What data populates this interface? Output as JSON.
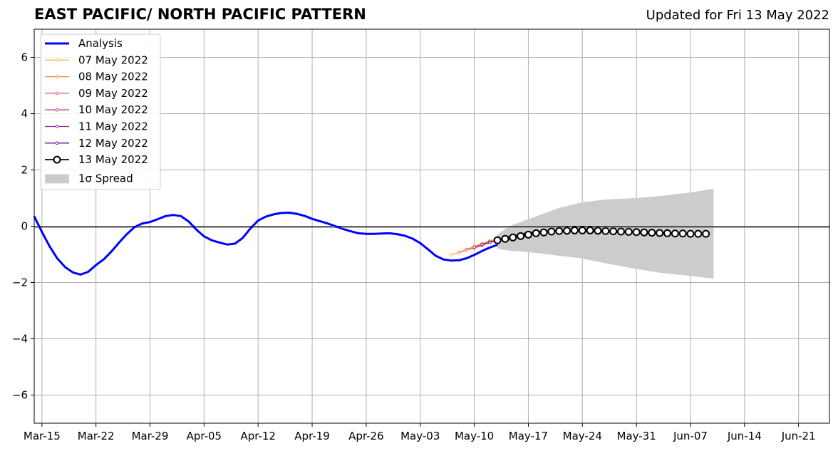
{
  "header": {
    "title": "EAST PACIFIC/ NORTH PACIFIC PATTERN",
    "updated": "Updated for Fri 13 May 2022"
  },
  "chart_data": {
    "type": "line",
    "title": "EAST PACIFIC/ NORTH PACIFIC PATTERN",
    "subtitle": "Updated for Fri 13 May 2022",
    "xlabel": "",
    "ylabel": "",
    "x_unit": "date",
    "xlim": [
      "2022-03-14",
      "2022-06-25"
    ],
    "ylim": [
      -7,
      7
    ],
    "yticks": [
      -6,
      -4,
      -2,
      0,
      2,
      4,
      6
    ],
    "ytick_labels": [
      "−6",
      "−4",
      "−2",
      "0",
      "2",
      "4",
      "6"
    ],
    "xticks": [
      "2022-03-15",
      "2022-03-22",
      "2022-03-29",
      "2022-04-05",
      "2022-04-12",
      "2022-04-19",
      "2022-04-26",
      "2022-05-03",
      "2022-05-10",
      "2022-05-17",
      "2022-05-24",
      "2022-05-31",
      "2022-06-07",
      "2022-06-14",
      "2022-06-21"
    ],
    "xtick_labels": [
      "Mar-15",
      "Mar-22",
      "Mar-29",
      "Apr-05",
      "Apr-12",
      "Apr-19",
      "Apr-26",
      "May-03",
      "May-10",
      "May-17",
      "May-24",
      "May-31",
      "Jun-07",
      "Jun-14",
      "Jun-21"
    ],
    "grid": true,
    "legend_position": "top-left",
    "zero_line": true,
    "analysis": {
      "name": "Analysis",
      "color": "#0000ff",
      "x": [
        "2022-03-14",
        "2022-03-15",
        "2022-03-16",
        "2022-03-17",
        "2022-03-18",
        "2022-03-19",
        "2022-03-20",
        "2022-03-21",
        "2022-03-22",
        "2022-03-23",
        "2022-03-24",
        "2022-03-25",
        "2022-03-26",
        "2022-03-27",
        "2022-03-28",
        "2022-03-29",
        "2022-03-30",
        "2022-03-31",
        "2022-04-01",
        "2022-04-02",
        "2022-04-03",
        "2022-04-04",
        "2022-04-05",
        "2022-04-06",
        "2022-04-07",
        "2022-04-08",
        "2022-04-09",
        "2022-04-10",
        "2022-04-11",
        "2022-04-12",
        "2022-04-13",
        "2022-04-14",
        "2022-04-15",
        "2022-04-16",
        "2022-04-17",
        "2022-04-18",
        "2022-04-19",
        "2022-04-20",
        "2022-04-21",
        "2022-04-22",
        "2022-04-23",
        "2022-04-24",
        "2022-04-25",
        "2022-04-26",
        "2022-04-27",
        "2022-04-28",
        "2022-04-29",
        "2022-04-30",
        "2022-05-01",
        "2022-05-02",
        "2022-05-03",
        "2022-05-04",
        "2022-05-05",
        "2022-05-06",
        "2022-05-07",
        "2022-05-08",
        "2022-05-09",
        "2022-05-10",
        "2022-05-11",
        "2022-05-12",
        "2022-05-13"
      ],
      "values": [
        0.35,
        -0.2,
        -0.72,
        -1.15,
        -1.45,
        -1.64,
        -1.72,
        -1.62,
        -1.38,
        -1.18,
        -0.9,
        -0.58,
        -0.28,
        -0.03,
        0.1,
        0.15,
        0.25,
        0.36,
        0.4,
        0.36,
        0.17,
        -0.12,
        -0.36,
        -0.5,
        -0.58,
        -0.65,
        -0.62,
        -0.42,
        -0.08,
        0.2,
        0.34,
        0.42,
        0.47,
        0.48,
        0.44,
        0.37,
        0.26,
        0.18,
        0.1,
        0.0,
        -0.1,
        -0.18,
        -0.25,
        -0.27,
        -0.27,
        -0.26,
        -0.25,
        -0.28,
        -0.34,
        -0.44,
        -0.6,
        -0.82,
        -1.05,
        -1.18,
        -1.22,
        -1.21,
        -1.14,
        -1.02,
        -0.88,
        -0.76,
        -0.66
      ]
    },
    "forecasts": [
      {
        "name": "07 May 2022",
        "color": "#fbb040",
        "start": "2022-05-07",
        "values": [
          -1.02,
          -0.93,
          -0.82,
          -0.72,
          -0.62,
          -0.52,
          -0.44,
          -0.37,
          -0.31,
          -0.27,
          -0.23,
          -0.2,
          -0.18,
          -0.17,
          -0.16,
          -0.16,
          -0.16,
          -0.16,
          -0.17,
          -0.17,
          -0.17,
          -0.18,
          -0.19,
          -0.2,
          -0.2,
          -0.21,
          -0.21,
          -0.22,
          -0.22,
          -0.22
        ]
      },
      {
        "name": "08 May 2022",
        "color": "#f58a42",
        "start": "2022-05-08",
        "values": [
          -0.95,
          -0.84,
          -0.73,
          -0.63,
          -0.54,
          -0.46,
          -0.38,
          -0.32,
          -0.27,
          -0.23,
          -0.2,
          -0.18,
          -0.16,
          -0.15,
          -0.15,
          -0.15,
          -0.16,
          -0.17,
          -0.18,
          -0.19,
          -0.2,
          -0.21,
          -0.22,
          -0.23,
          -0.24,
          -0.24,
          -0.25,
          -0.25,
          -0.25
        ]
      },
      {
        "name": "09 May 2022",
        "color": "#e05a6e",
        "start": "2022-05-09",
        "values": [
          -0.84,
          -0.78,
          -0.68,
          -0.58,
          -0.49,
          -0.41,
          -0.34,
          -0.28,
          -0.24,
          -0.2,
          -0.18,
          -0.17,
          -0.16,
          -0.16,
          -0.17,
          -0.18,
          -0.19,
          -0.2,
          -0.21,
          -0.22,
          -0.23,
          -0.24,
          -0.25,
          -0.26,
          -0.26,
          -0.27,
          -0.27,
          -0.27
        ]
      },
      {
        "name": "10 May 2022",
        "color": "#c23b86",
        "start": "2022-05-10",
        "values": [
          -0.74,
          -0.66,
          -0.57,
          -0.48,
          -0.4,
          -0.33,
          -0.27,
          -0.22,
          -0.19,
          -0.17,
          -0.16,
          -0.16,
          -0.16,
          -0.17,
          -0.18,
          -0.19,
          -0.2,
          -0.21,
          -0.22,
          -0.23,
          -0.24,
          -0.25,
          -0.26,
          -0.26,
          -0.27,
          -0.27,
          -0.27
        ]
      },
      {
        "name": "11 May 2022",
        "color": "#9b23a0",
        "start": "2022-05-11",
        "values": [
          -0.65,
          -0.57,
          -0.49,
          -0.41,
          -0.34,
          -0.28,
          -0.23,
          -0.19,
          -0.17,
          -0.16,
          -0.15,
          -0.15,
          -0.16,
          -0.17,
          -0.18,
          -0.19,
          -0.2,
          -0.21,
          -0.22,
          -0.23,
          -0.24,
          -0.25,
          -0.26,
          -0.26,
          -0.27,
          -0.27
        ]
      },
      {
        "name": "12 May 2022",
        "color": "#5b1a9e",
        "start": "2022-05-12",
        "values": [
          -0.58,
          -0.5,
          -0.43,
          -0.36,
          -0.3,
          -0.25,
          -0.21,
          -0.18,
          -0.16,
          -0.15,
          -0.15,
          -0.15,
          -0.16,
          -0.17,
          -0.18,
          -0.19,
          -0.21,
          -0.22,
          -0.23,
          -0.24,
          -0.25,
          -0.26,
          -0.26,
          -0.27,
          -0.27
        ]
      },
      {
        "name": "13 May 2022",
        "color": "#000000",
        "start": "2022-05-13",
        "marker": "open-circle",
        "values": [
          -0.5,
          -0.45,
          -0.4,
          -0.35,
          -0.3,
          -0.25,
          -0.22,
          -0.19,
          -0.17,
          -0.16,
          -0.15,
          -0.15,
          -0.15,
          -0.16,
          -0.17,
          -0.18,
          -0.19,
          -0.2,
          -0.21,
          -0.22,
          -0.23,
          -0.24,
          -0.25,
          -0.26,
          -0.26,
          -0.27,
          -0.27,
          -0.27
        ]
      }
    ],
    "spread": {
      "name": "1σ Spread",
      "color": "#cccccc",
      "x": [
        "2022-05-13",
        "2022-05-14",
        "2022-05-15",
        "2022-05-17",
        "2022-05-19",
        "2022-05-21",
        "2022-05-24",
        "2022-05-27",
        "2022-05-31",
        "2022-06-03",
        "2022-06-07",
        "2022-06-10"
      ],
      "upper": [
        -0.3,
        -0.1,
        0.05,
        0.25,
        0.45,
        0.65,
        0.85,
        0.95,
        1.0,
        1.07,
        1.2,
        1.33
      ],
      "lower": [
        -0.8,
        -0.85,
        -0.88,
        -0.92,
        -0.98,
        -1.05,
        -1.15,
        -1.32,
        -1.52,
        -1.65,
        -1.77,
        -1.86
      ]
    }
  }
}
